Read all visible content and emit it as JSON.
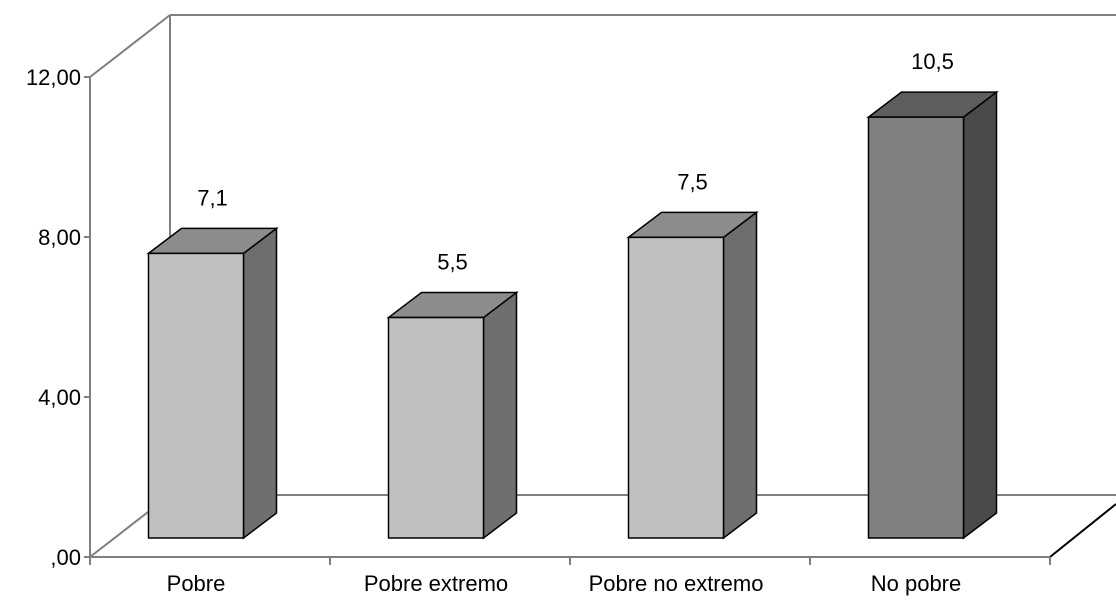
{
  "chart_data": {
    "type": "bar",
    "title": "",
    "xlabel": "",
    "ylabel": "",
    "categories": [
      "Pobre",
      "Pobre extremo",
      "Pobre no  extremo",
      "No pobre"
    ],
    "values": [
      7.1,
      5.5,
      7.5,
      10.5
    ],
    "value_labels": [
      "7,1",
      "5,5",
      "7,5",
      "10,5"
    ],
    "ylim": [
      0,
      12
    ],
    "yticks": [
      0,
      4,
      8,
      12
    ],
    "ytick_labels": [
      ",00",
      "4,00",
      "8,00",
      "12,00"
    ],
    "style": "3d-column",
    "grid": false,
    "legend": "none",
    "colors": {
      "bar_light": "#c0c0c0",
      "bar_light_top": "#8c8c8c",
      "bar_light_side": "#6e6e6e",
      "bar_dark": "#808080",
      "bar_dark_top": "#5e5e5e",
      "bar_dark_side": "#4a4a4a",
      "axis": "#808080",
      "walls": "#ffffff"
    },
    "bar_shades": [
      "light",
      "light",
      "light",
      "dark"
    ]
  }
}
